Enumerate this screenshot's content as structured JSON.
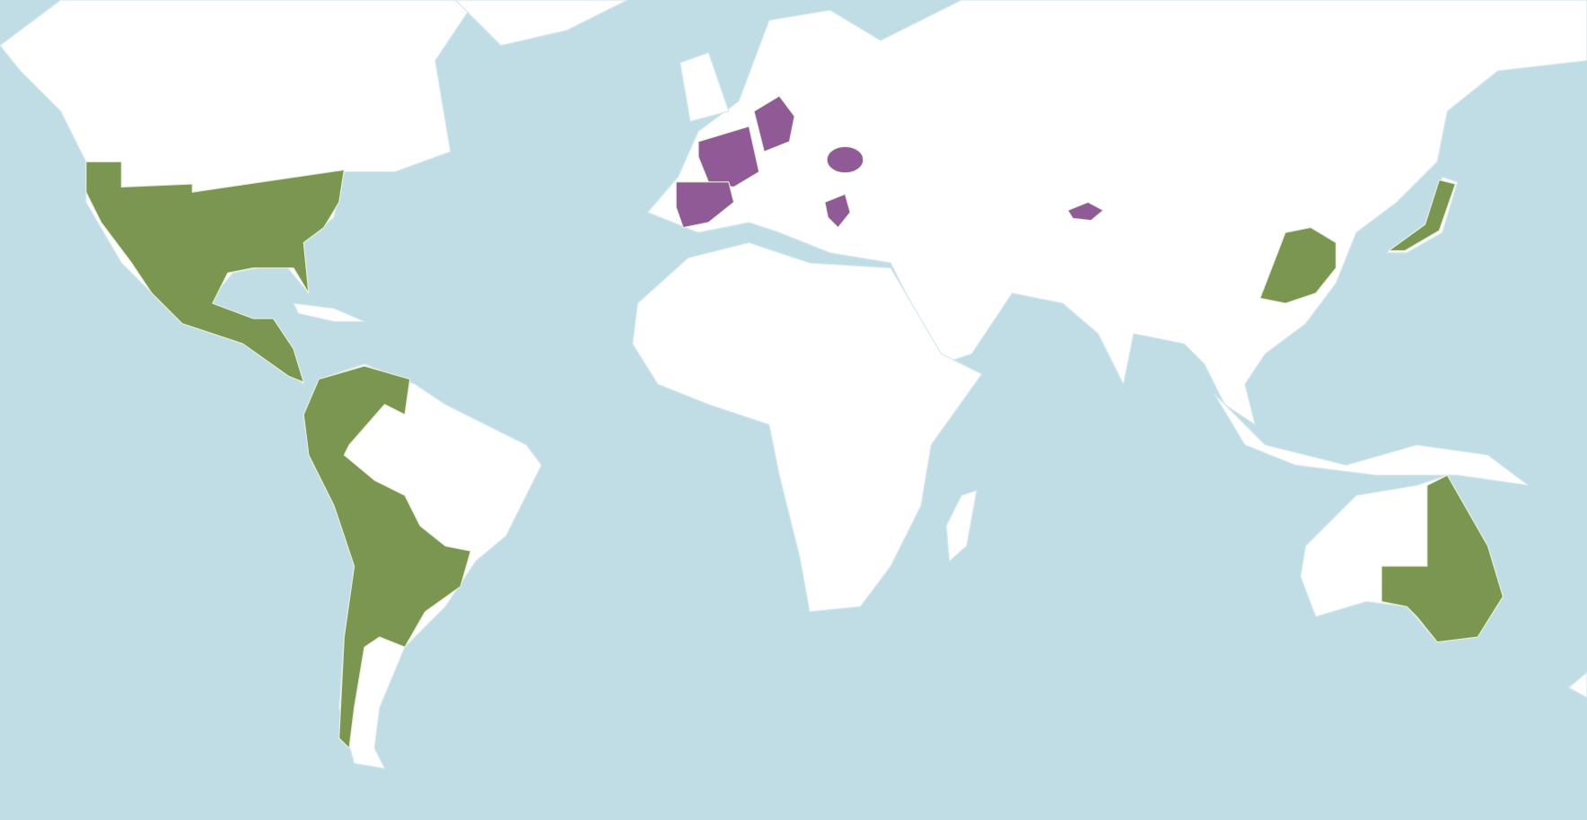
{
  "map": {
    "colors": {
      "ocean": "#c0dde6",
      "land": "#ffffff",
      "border": "#d6e8ee",
      "native": "#7a9651",
      "introduced": "#8f5a96",
      "region_border": "#e6efd9"
    }
  }
}
